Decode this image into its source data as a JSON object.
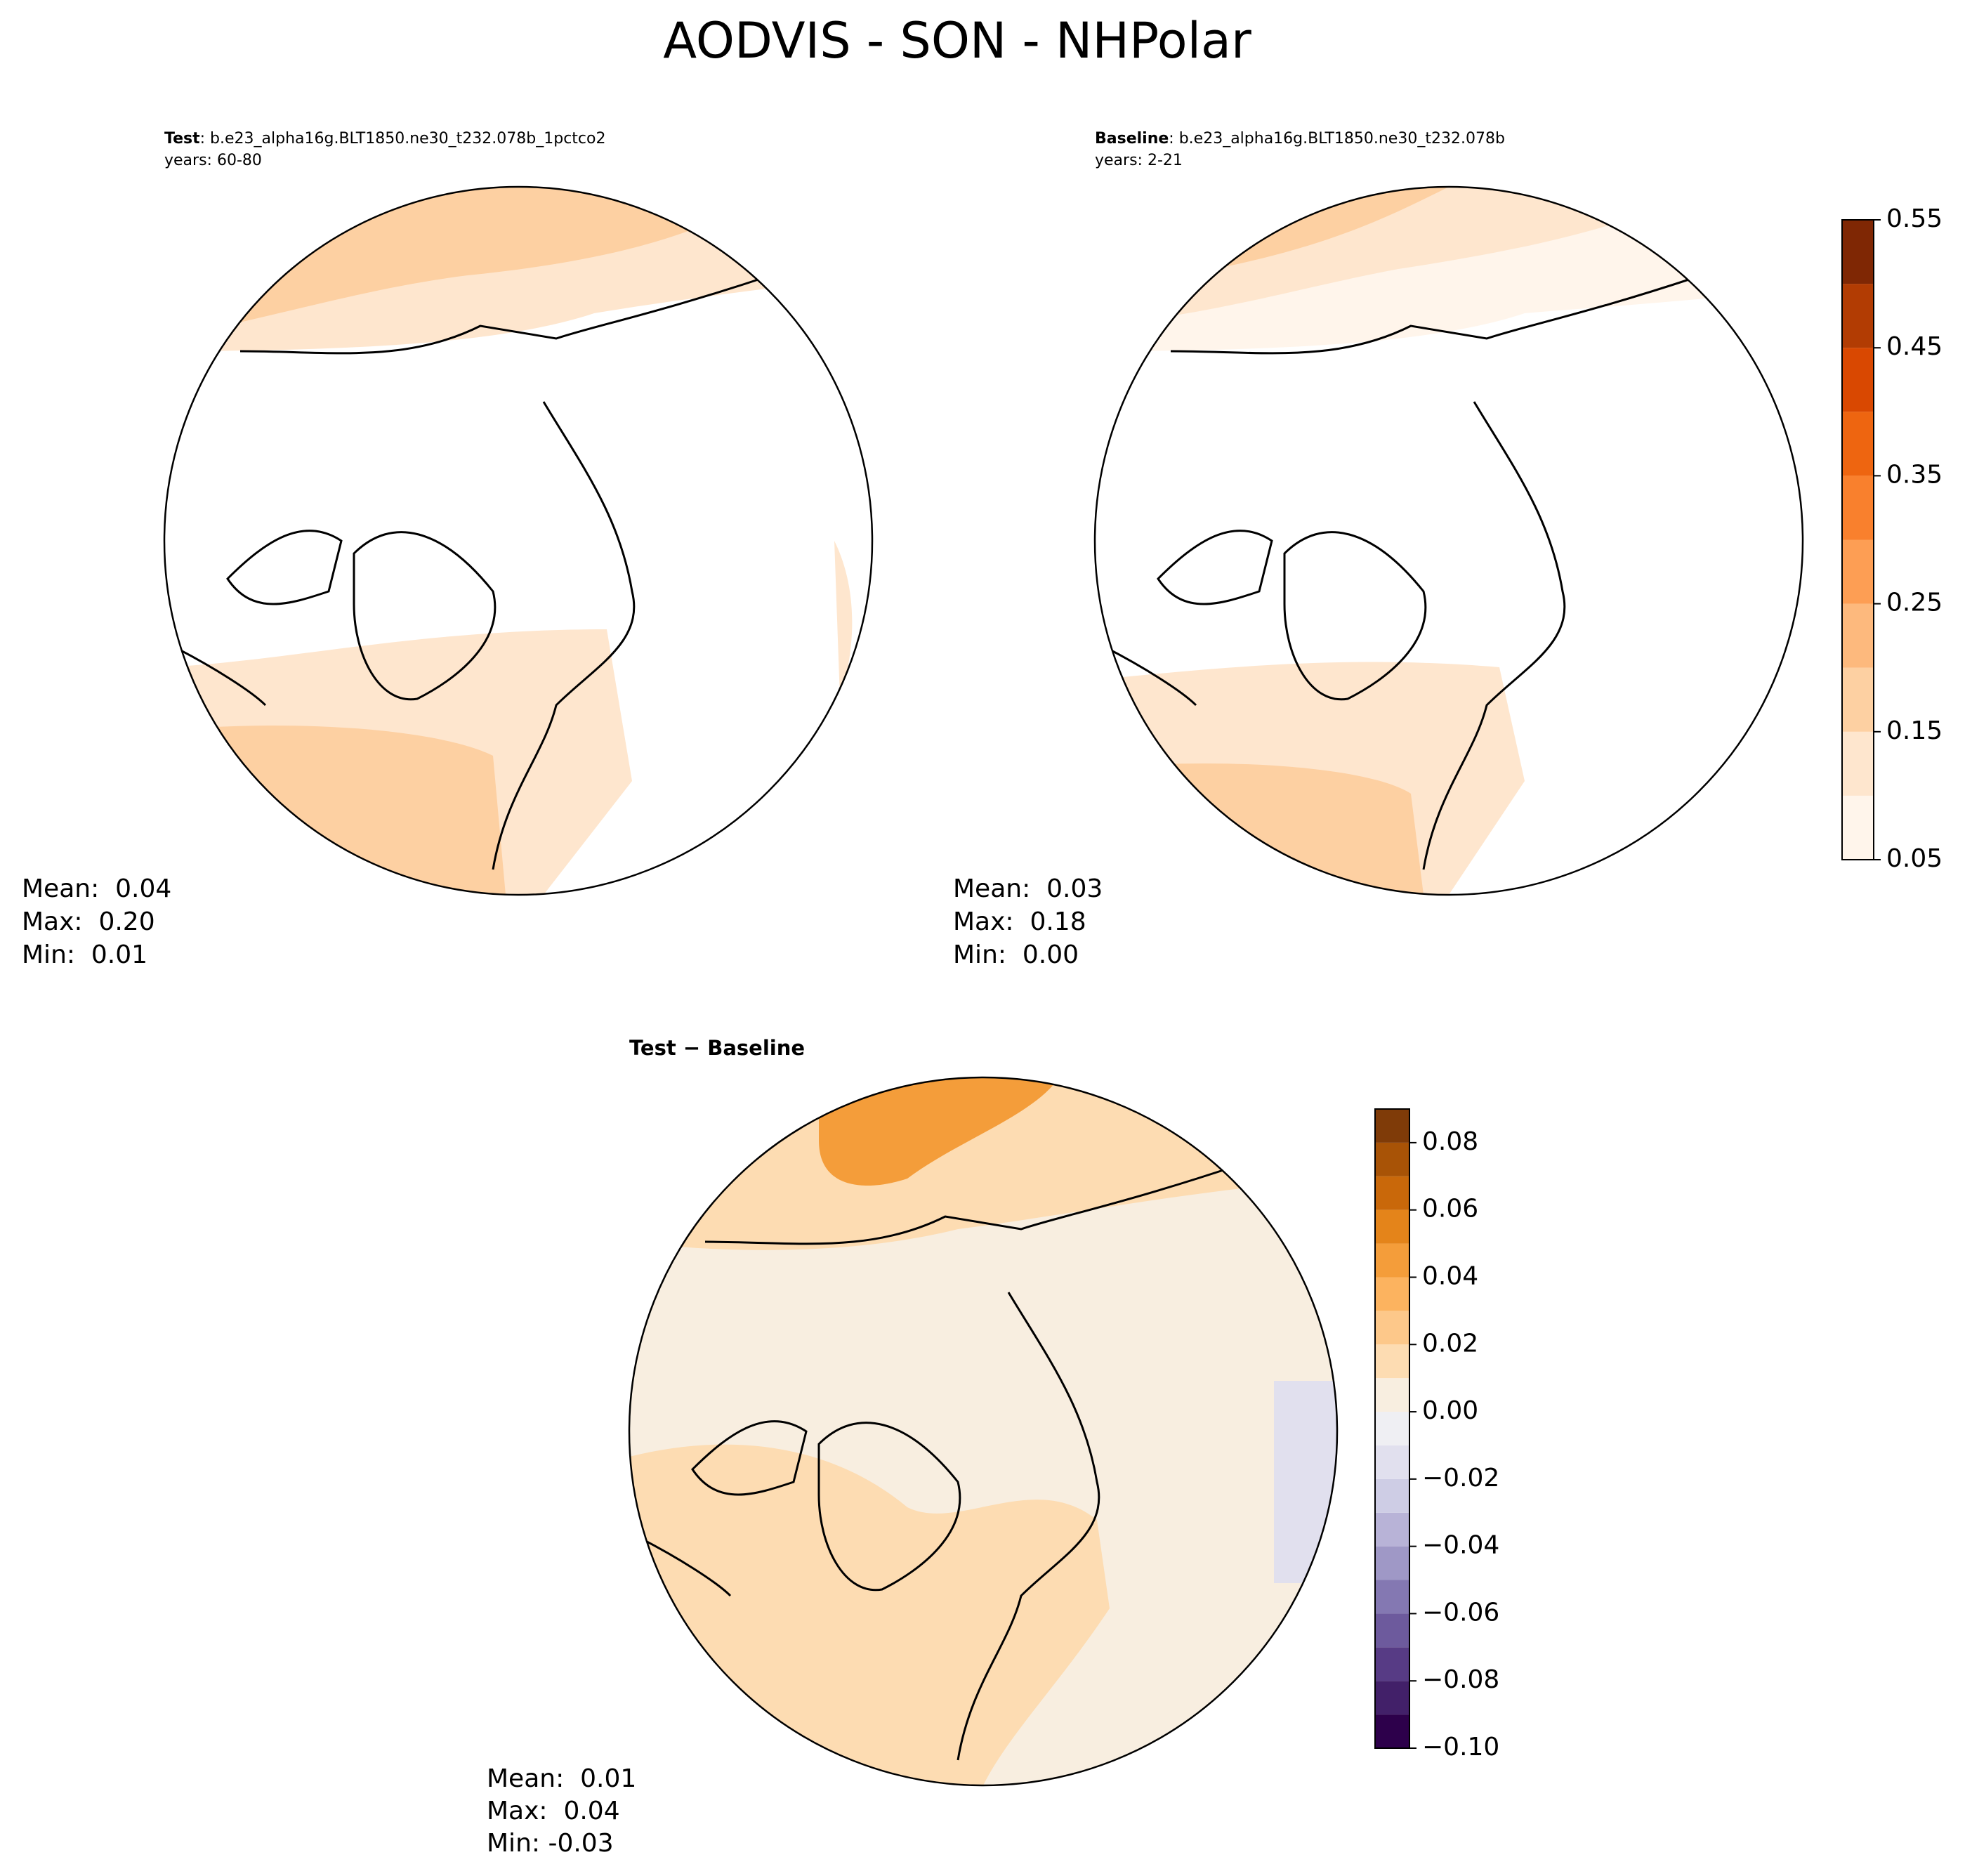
{
  "title": "AODVIS - SON - NHPolar",
  "panels": [
    {
      "label": "Test",
      "case": ": b.e23_alpha16g.BLT1850.ne30_t232.078b_1pctco2",
      "years": "years: 60-80",
      "stats": [
        "Mean:  0.04",
        "Max:  0.20",
        "Min:  0.01"
      ]
    },
    {
      "label": "Baseline",
      "case": ": b.e23_alpha16g.BLT1850.ne30_t232.078b",
      "years": "years: 2-21",
      "stats": [
        "Mean:  0.03",
        "Max:  0.18",
        "Min:  0.00"
      ]
    }
  ],
  "diff": {
    "title": "Test − Baseline",
    "stats": [
      "Mean:  0.01",
      "Max:  0.04",
      "Min: -0.03"
    ]
  },
  "colorbars": [
    {
      "levels": [
        0.05,
        0.1,
        0.15,
        0.2,
        0.25,
        0.3,
        0.35,
        0.4,
        0.45,
        0.5,
        0.55
      ],
      "colors": [
        "#fff5eb",
        "#fee6ce",
        "#fdd0a2",
        "#fdb97d",
        "#fd9e54",
        "#f9802d",
        "#ee6510",
        "#d94801",
        "#b23c03",
        "#7f2704"
      ],
      "lim": [
        0.05,
        0.55
      ],
      "ticks": [
        0.05,
        0.15,
        0.25,
        0.35,
        0.45,
        0.55
      ]
    },
    {
      "levels": [
        -0.1,
        -0.09,
        -0.08,
        -0.07,
        -0.06,
        -0.05,
        -0.04,
        -0.03,
        -0.02,
        -0.01,
        0,
        0.01,
        0.02,
        0.03,
        0.04,
        0.05,
        0.06,
        0.07,
        0.08,
        0.09
      ],
      "colors": [
        "#2d004b",
        "#422069",
        "#573b85",
        "#6d5a9d",
        "#8478b2",
        "#9f98c6",
        "#b8b3d7",
        "#cecde5",
        "#e1e0ee",
        "#efeff3",
        "#f8eee0",
        "#fddcb2",
        "#fdc88a",
        "#fcb35f",
        "#f49d3a",
        "#e4841a",
        "#c9680a",
        "#a85306",
        "#7f3b08"
      ],
      "lim": [
        -0.1,
        0.09
      ],
      "ticks": [
        {
          "value": -0.1,
          "label": "−0.10"
        },
        {
          "value": -0.08,
          "label": "−0.08"
        },
        {
          "value": -0.06,
          "label": "−0.06"
        },
        {
          "value": -0.04,
          "label": "−0.04"
        },
        {
          "value": -0.02,
          "label": "−0.02"
        },
        {
          "value": 0,
          "label": "0.00"
        },
        0.02,
        0.04,
        0.06,
        0.08
      ]
    }
  ]
}
